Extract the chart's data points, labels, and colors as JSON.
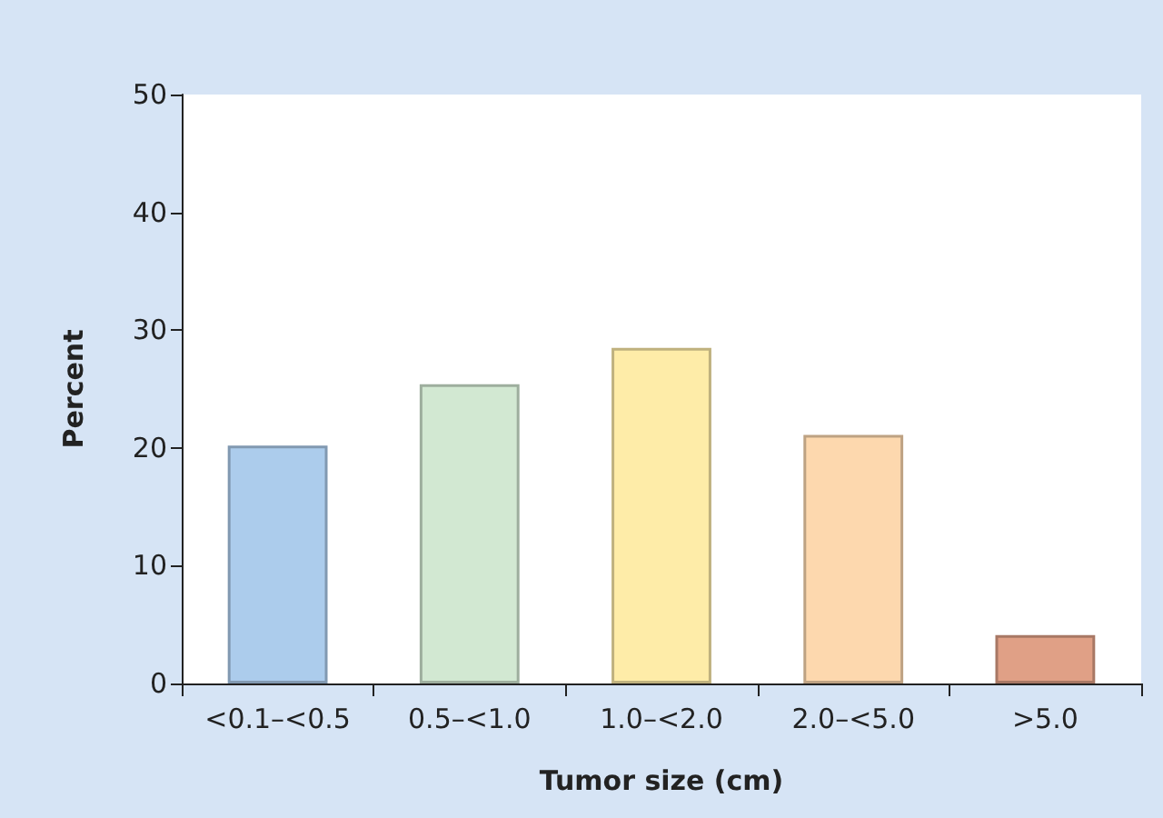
{
  "chart_data": {
    "type": "bar",
    "xlabel": "Tumor size (cm)",
    "ylabel": "Percent",
    "categories": [
      "<0.1–<0.5",
      "0.5–<1.0",
      "1.0–<2.0",
      "2.0–<5.0",
      ">5.0"
    ],
    "values": [
      20.2,
      25.4,
      28.5,
      21.1,
      4.1
    ],
    "colors": [
      "#acccec",
      "#d2e8d2",
      "#feeca8",
      "#fdd8ae",
      "#e0a086"
    ],
    "ylim": [
      0,
      50
    ],
    "yticks": [
      0,
      10,
      20,
      30,
      40,
      50
    ],
    "grid": false
  }
}
